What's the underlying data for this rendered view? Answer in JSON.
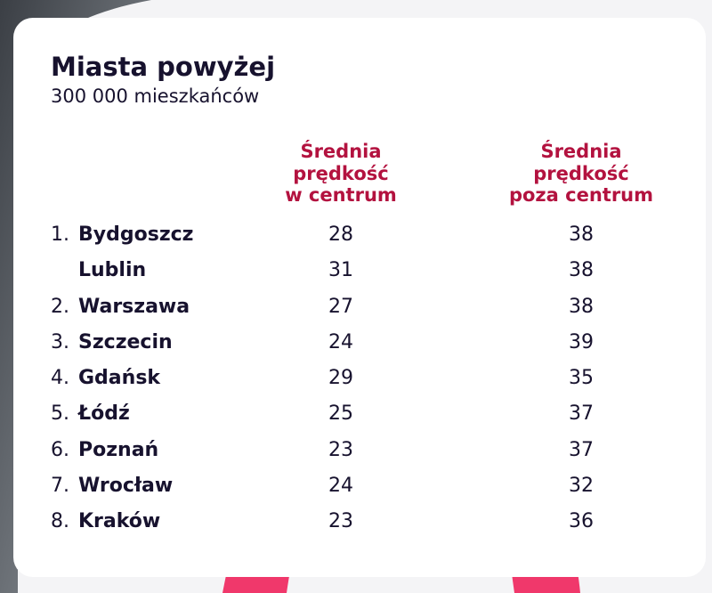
{
  "header": {
    "title": "Miasta powyżej",
    "subtitle": "300 000 mieszkańców"
  },
  "table": {
    "columns": [
      [
        "Średnia",
        "prędkość",
        "w centrum"
      ],
      [
        "Średnia",
        "prędkość",
        "poza centrum"
      ]
    ],
    "rows": [
      [
        "1.",
        "Bydgoszcz",
        28,
        38
      ],
      [
        null,
        "Lublin",
        31,
        38
      ],
      [
        "2.",
        "Warszawa",
        27,
        38
      ],
      [
        "3.",
        "Szczecin",
        24,
        39
      ],
      [
        "4.",
        "Gdańsk",
        29,
        35
      ],
      [
        "5.",
        "Łódź",
        25,
        37
      ],
      [
        "6.",
        "Poznań",
        23,
        37
      ],
      [
        "7.",
        "Wrocław",
        24,
        32
      ],
      [
        "8.",
        "Kraków",
        23,
        36
      ]
    ]
  }
}
